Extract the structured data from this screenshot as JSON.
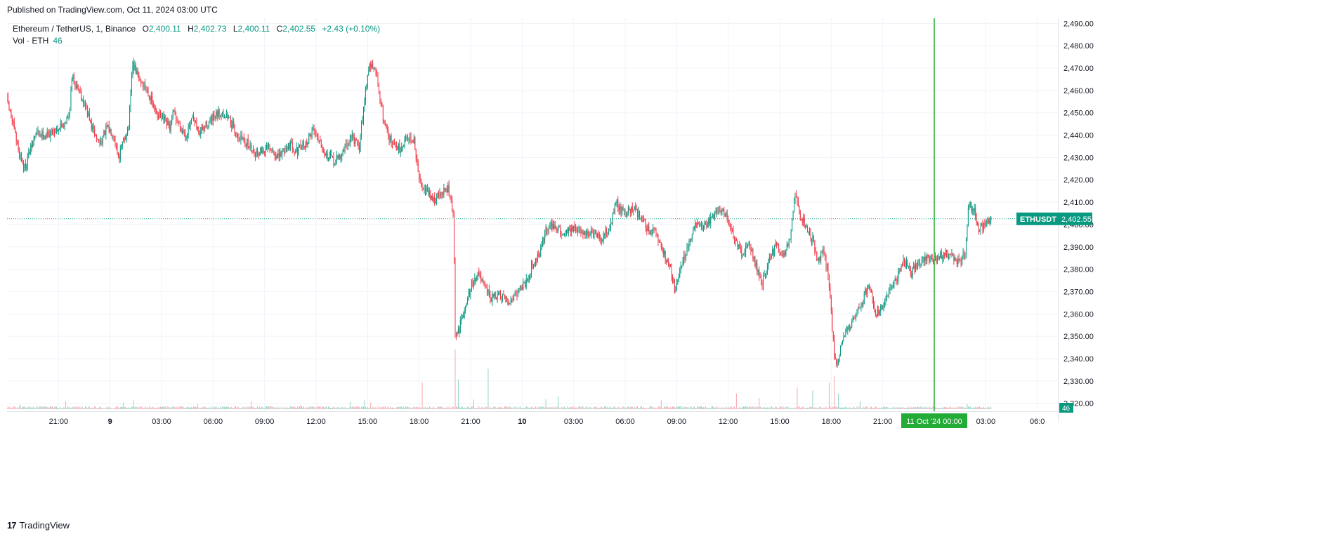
{
  "header": {
    "published": "Published on TradingView.com, Oct 11, 2024 03:00 UTC"
  },
  "legend": {
    "symbol": "Ethereum / TetherUS, 1, Binance",
    "open_label": "O",
    "open": "2,400.11",
    "high_label": "H",
    "high": "2,402.73",
    "low_label": "L",
    "low": "2,400.11",
    "close_label": "C",
    "close": "2,402.55",
    "change": "+2.43 (+0.10%)",
    "volume_label": "Vol · ETH",
    "volume": "46"
  },
  "footer": {
    "brand": "TradingView",
    "logo": "17"
  },
  "colors": {
    "up": "#089981",
    "down": "#f23645",
    "crosshair": "#22ab36",
    "grid": "#f0f3fa",
    "text": "#131722"
  },
  "chart_data": {
    "type": "candlestick",
    "symbol": "ETHUSDT",
    "timeframe": "1 minute",
    "ylim": [
      2318,
      2492
    ],
    "y_ticks": [
      "2,490.00",
      "2,480.00",
      "2,470.00",
      "2,460.00",
      "2,450.00",
      "2,440.00",
      "2,430.00",
      "2,420.00",
      "2,410.00",
      "2,400.00",
      "2,390.00",
      "2,380.00",
      "2,370.00",
      "2,360.00",
      "2,350.00",
      "2,340.00",
      "2,330.00",
      "2,320.00"
    ],
    "y_tick_values": [
      2490,
      2480,
      2470,
      2460,
      2450,
      2440,
      2430,
      2420,
      2410,
      2400,
      2390,
      2380,
      2370,
      2360,
      2350,
      2340,
      2330,
      2320
    ],
    "x_ticks": [
      {
        "label": "21:00",
        "t": 3
      },
      {
        "label": "9",
        "t": 6
      },
      {
        "label": "03:00",
        "t": 9
      },
      {
        "label": "06:00",
        "t": 12
      },
      {
        "label": "09:00",
        "t": 15
      },
      {
        "label": "12:00",
        "t": 18
      },
      {
        "label": "15:00",
        "t": 21
      },
      {
        "label": "18:00",
        "t": 24
      },
      {
        "label": "21:00",
        "t": 27
      },
      {
        "label": "10",
        "t": 30
      },
      {
        "label": "03:00",
        "t": 33
      },
      {
        "label": "06:00",
        "t": 36
      },
      {
        "label": "09:00",
        "t": 39
      },
      {
        "label": "12:00",
        "t": 42
      },
      {
        "label": "15:00",
        "t": 45
      },
      {
        "label": "18:00",
        "t": 48
      },
      {
        "label": "21:00",
        "t": 51
      },
      {
        "label": "03:00",
        "t": 57
      },
      {
        "label": "06:0",
        "t": 60
      }
    ],
    "x_range_hours": [
      0,
      61.2
    ],
    "crosshair": {
      "t": 54,
      "label": "11 Oct '24   00:00"
    },
    "last_price": {
      "label": "ETHUSDT",
      "value": "2,402.55",
      "price": 2402.55
    },
    "last_volume": {
      "value": "46"
    },
    "price_path": [
      [
        0,
        2456
      ],
      [
        0.3,
        2446
      ],
      [
        0.7,
        2432
      ],
      [
        1.0,
        2425
      ],
      [
        1.3,
        2432
      ],
      [
        1.7,
        2441
      ],
      [
        2.3,
        2440
      ],
      [
        2.9,
        2443
      ],
      [
        3.3,
        2445
      ],
      [
        3.6,
        2449
      ],
      [
        3.8,
        2466
      ],
      [
        4.2,
        2460
      ],
      [
        4.6,
        2452
      ],
      [
        5.0,
        2442
      ],
      [
        5.4,
        2436
      ],
      [
        5.8,
        2443
      ],
      [
        6.2,
        2441
      ],
      [
        6.5,
        2430
      ],
      [
        6.8,
        2438
      ],
      [
        7.1,
        2444
      ],
      [
        7.3,
        2472
      ],
      [
        7.7,
        2465
      ],
      [
        8.2,
        2460
      ],
      [
        8.6,
        2451
      ],
      [
        9.1,
        2447
      ],
      [
        9.5,
        2443
      ],
      [
        9.7,
        2450
      ],
      [
        10.0,
        2445
      ],
      [
        10.4,
        2440
      ],
      [
        10.8,
        2447
      ],
      [
        11.2,
        2441
      ],
      [
        11.8,
        2446
      ],
      [
        12.4,
        2450
      ],
      [
        12.9,
        2448
      ],
      [
        13.4,
        2440
      ],
      [
        13.9,
        2437
      ],
      [
        14.5,
        2432
      ],
      [
        15.2,
        2434
      ],
      [
        15.8,
        2430
      ],
      [
        16.4,
        2436
      ],
      [
        16.9,
        2433
      ],
      [
        17.5,
        2437
      ],
      [
        17.8,
        2443
      ],
      [
        18.2,
        2438
      ],
      [
        18.6,
        2431
      ],
      [
        19.1,
        2428
      ],
      [
        19.6,
        2433
      ],
      [
        20.1,
        2440
      ],
      [
        20.5,
        2433
      ],
      [
        20.8,
        2456
      ],
      [
        21.1,
        2472
      ],
      [
        21.5,
        2468
      ],
      [
        21.9,
        2448
      ],
      [
        22.4,
        2436
      ],
      [
        22.9,
        2434
      ],
      [
        23.3,
        2440
      ],
      [
        23.7,
        2437
      ],
      [
        24.0,
        2420
      ],
      [
        24.4,
        2415
      ],
      [
        24.8,
        2411
      ],
      [
        25.3,
        2414
      ],
      [
        25.7,
        2416
      ],
      [
        26.0,
        2404
      ],
      [
        26.1,
        2350
      ],
      [
        26.3,
        2352
      ],
      [
        26.6,
        2362
      ],
      [
        27.0,
        2372
      ],
      [
        27.4,
        2378
      ],
      [
        27.8,
        2372
      ],
      [
        28.2,
        2367
      ],
      [
        28.7,
        2368
      ],
      [
        29.2,
        2365
      ],
      [
        29.7,
        2370
      ],
      [
        30.2,
        2374
      ],
      [
        30.6,
        2382
      ],
      [
        31.0,
        2387
      ],
      [
        31.4,
        2398
      ],
      [
        31.8,
        2400
      ],
      [
        32.3,
        2396
      ],
      [
        32.8,
        2398
      ],
      [
        33.4,
        2397
      ],
      [
        34.0,
        2396
      ],
      [
        34.6,
        2393
      ],
      [
        35.1,
        2399
      ],
      [
        35.5,
        2410
      ],
      [
        35.9,
        2405
      ],
      [
        36.4,
        2407
      ],
      [
        36.9,
        2404
      ],
      [
        37.3,
        2398
      ],
      [
        37.8,
        2396
      ],
      [
        38.2,
        2388
      ],
      [
        38.6,
        2381
      ],
      [
        38.9,
        2371
      ],
      [
        39.3,
        2383
      ],
      [
        39.7,
        2390
      ],
      [
        40.1,
        2400
      ],
      [
        40.6,
        2399
      ],
      [
        41.0,
        2403
      ],
      [
        41.5,
        2407
      ],
      [
        41.9,
        2404
      ],
      [
        42.1,
        2400
      ],
      [
        42.4,
        2392
      ],
      [
        42.8,
        2387
      ],
      [
        43.2,
        2392
      ],
      [
        43.6,
        2382
      ],
      [
        44.0,
        2374
      ],
      [
        44.4,
        2384
      ],
      [
        44.8,
        2391
      ],
      [
        45.2,
        2385
      ],
      [
        45.6,
        2395
      ],
      [
        45.9,
        2414
      ],
      [
        46.2,
        2404
      ],
      [
        46.6,
        2398
      ],
      [
        47.0,
        2392
      ],
      [
        47.2,
        2382
      ],
      [
        47.5,
        2388
      ],
      [
        47.8,
        2380
      ],
      [
        48.0,
        2360
      ],
      [
        48.2,
        2340
      ],
      [
        48.4,
        2336
      ],
      [
        48.6,
        2348
      ],
      [
        49.0,
        2353
      ],
      [
        49.4,
        2360
      ],
      [
        49.8,
        2365
      ],
      [
        50.2,
        2374
      ],
      [
        50.6,
        2360
      ],
      [
        51.0,
        2364
      ],
      [
        51.4,
        2370
      ],
      [
        51.8,
        2375
      ],
      [
        52.2,
        2385
      ],
      [
        52.6,
        2378
      ],
      [
        53.0,
        2382
      ],
      [
        53.5,
        2385
      ],
      [
        54.0,
        2384
      ],
      [
        54.5,
        2387
      ],
      [
        55.0,
        2386
      ],
      [
        55.5,
        2383
      ],
      [
        55.8,
        2388
      ],
      [
        56.0,
        2408
      ],
      [
        56.3,
        2407
      ],
      [
        56.6,
        2398
      ],
      [
        57.0,
        2400
      ],
      [
        57.3,
        2402.55
      ]
    ],
    "volume_ylim": [
      0,
      220
    ],
    "volume_spikes": [
      {
        "t": 0.8,
        "v": 12
      },
      {
        "t": 3.4,
        "v": 22
      },
      {
        "t": 6.8,
        "v": 18
      },
      {
        "t": 7.4,
        "v": 24
      },
      {
        "t": 11.1,
        "v": 13
      },
      {
        "t": 14.2,
        "v": 22
      },
      {
        "t": 17.1,
        "v": 11
      },
      {
        "t": 20.0,
        "v": 20
      },
      {
        "t": 20.8,
        "v": 24
      },
      {
        "t": 21.2,
        "v": 18
      },
      {
        "t": 24.2,
        "v": 72
      },
      {
        "t": 26.1,
        "v": 160
      },
      {
        "t": 26.3,
        "v": 80
      },
      {
        "t": 27.2,
        "v": 26
      },
      {
        "t": 28.0,
        "v": 108
      },
      {
        "t": 31.4,
        "v": 26
      },
      {
        "t": 32.1,
        "v": 34
      },
      {
        "t": 38.1,
        "v": 24
      },
      {
        "t": 42.5,
        "v": 42
      },
      {
        "t": 43.8,
        "v": 30
      },
      {
        "t": 46.0,
        "v": 58
      },
      {
        "t": 46.9,
        "v": 50
      },
      {
        "t": 47.9,
        "v": 72
      },
      {
        "t": 48.2,
        "v": 90
      },
      {
        "t": 48.4,
        "v": 42
      },
      {
        "t": 49.7,
        "v": 22
      },
      {
        "t": 55.9,
        "v": 14
      }
    ]
  }
}
